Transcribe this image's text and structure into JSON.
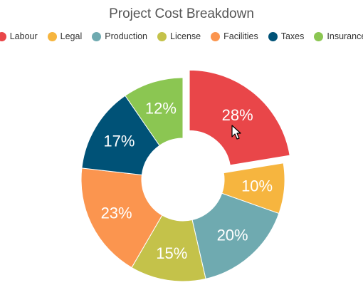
{
  "chart_data": {
    "type": "pie",
    "title": "Project Cost Breakdown",
    "categories": [
      "Labour",
      "Legal",
      "Production",
      "License",
      "Facilities",
      "Taxes",
      "Insurance"
    ],
    "values": [
      28,
      10,
      20,
      15,
      23,
      17,
      12
    ],
    "data_labels": [
      "28%",
      "10%",
      "20%",
      "15%",
      "23%",
      "17%",
      "12%"
    ],
    "colors": [
      "#e94649",
      "#f6b53f",
      "#6faab0",
      "#c4c24a",
      "#fb954f",
      "#005277",
      "#8bc652"
    ],
    "exploded": "Labour",
    "legend_position": "top",
    "style": "doughnut"
  }
}
